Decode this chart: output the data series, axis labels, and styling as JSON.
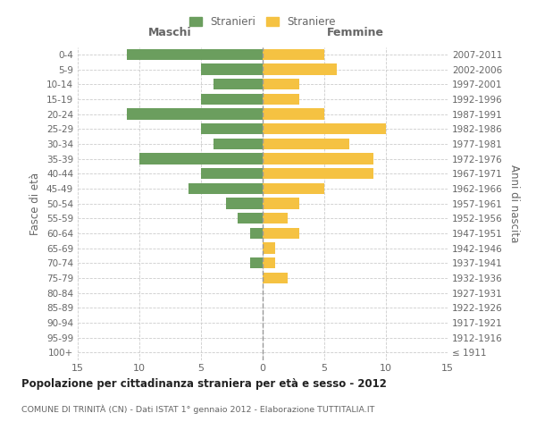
{
  "age_groups": [
    "100+",
    "95-99",
    "90-94",
    "85-89",
    "80-84",
    "75-79",
    "70-74",
    "65-69",
    "60-64",
    "55-59",
    "50-54",
    "45-49",
    "40-44",
    "35-39",
    "30-34",
    "25-29",
    "20-24",
    "15-19",
    "10-14",
    "5-9",
    "0-4"
  ],
  "birth_years": [
    "≤ 1911",
    "1912-1916",
    "1917-1921",
    "1922-1926",
    "1927-1931",
    "1932-1936",
    "1937-1941",
    "1942-1946",
    "1947-1951",
    "1952-1956",
    "1957-1961",
    "1962-1966",
    "1967-1971",
    "1972-1976",
    "1977-1981",
    "1982-1986",
    "1987-1991",
    "1992-1996",
    "1997-2001",
    "2002-2006",
    "2007-2011"
  ],
  "maschi": [
    0,
    0,
    0,
    0,
    0,
    0,
    1,
    0,
    1,
    2,
    3,
    6,
    5,
    10,
    4,
    5,
    11,
    5,
    4,
    5,
    11
  ],
  "femmine": [
    0,
    0,
    0,
    0,
    0,
    2,
    1,
    1,
    3,
    2,
    3,
    5,
    9,
    9,
    7,
    10,
    5,
    3,
    3,
    6,
    5
  ],
  "maschi_color": "#6b9e5e",
  "femmine_color": "#f5c242",
  "title": "Popolazione per cittadinanza straniera per età e sesso - 2012",
  "subtitle": "COMUNE DI TRINITÀ (CN) - Dati ISTAT 1° gennaio 2012 - Elaborazione TUTTITALIA.IT",
  "xlabel_left": "Maschi",
  "xlabel_right": "Femmine",
  "ylabel_left": "Fasce di età",
  "ylabel_right": "Anni di nascita",
  "legend_maschi": "Stranieri",
  "legend_femmine": "Straniere",
  "xlim": 15,
  "background_color": "#ffffff",
  "grid_color": "#cccccc",
  "text_color": "#666666",
  "bar_height": 0.75
}
